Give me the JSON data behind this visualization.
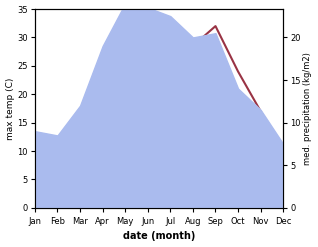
{
  "months": [
    "Jan",
    "Feb",
    "Mar",
    "Apr",
    "May",
    "Jun",
    "Jul",
    "Aug",
    "Sep",
    "Oct",
    "Nov",
    "Dec"
  ],
  "temp": [
    7.5,
    8.5,
    13.5,
    18.5,
    26.5,
    25.5,
    31.0,
    28.5,
    32.0,
    24.0,
    17.0,
    10.0
  ],
  "precip": [
    9.0,
    8.5,
    12.0,
    19.0,
    24.0,
    23.5,
    22.5,
    20.0,
    20.5,
    14.0,
    11.5,
    7.5
  ],
  "temp_ylim": [
    0,
    35
  ],
  "precip_ylim": [
    0,
    23.33
  ],
  "temp_yticks": [
    0,
    5,
    10,
    15,
    20,
    25,
    30,
    35
  ],
  "precip_yticks": [
    0,
    5,
    10,
    15,
    20
  ],
  "ylabel_left": "max temp (C)",
  "ylabel_right": "med. precipitation (kg/m2)",
  "xlabel": "date (month)",
  "temp_color": "#993344",
  "precip_color": "#aabbee",
  "bg_color": "#ffffff"
}
